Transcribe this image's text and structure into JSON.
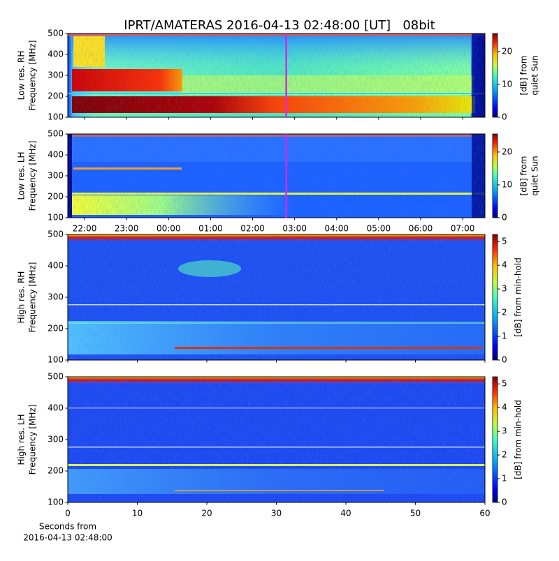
{
  "title": "IPRT/AMATERAS 2016-04-13 02:48:00 [UT]   08bit",
  "chart_data": [
    {
      "type": "heatmap",
      "ylabel": [
        "Low res. RH",
        "Frequency [MHz]"
      ],
      "xlim": [
        21.6,
        31.53
      ],
      "ylim": [
        100,
        500
      ],
      "yticks": [
        100,
        200,
        300,
        400,
        500
      ],
      "colorbar": {
        "label": [
          "[dB] from",
          "quiet Sun"
        ],
        "lim": [
          0,
          25.5
        ],
        "ticks": [
          0,
          10,
          20
        ]
      },
      "cursor": {
        "x": 26.8,
        "color": "#d42be0"
      }
    },
    {
      "type": "heatmap",
      "ylabel": [
        "Low res. LH",
        "Frequency [MHz]"
      ],
      "xlim": [
        21.6,
        31.53
      ],
      "ylim": [
        100,
        500
      ],
      "yticks": [
        100,
        200,
        300,
        400,
        500
      ],
      "xticks": [
        {
          "value": 22,
          "label": "22:00"
        },
        {
          "value": 23,
          "label": "23:00"
        },
        {
          "value": 24,
          "label": "00:00"
        },
        {
          "value": 25,
          "label": "01:00"
        },
        {
          "value": 26,
          "label": "02:00"
        },
        {
          "value": 27,
          "label": "03:00"
        },
        {
          "value": 28,
          "label": "04:00"
        },
        {
          "value": 29,
          "label": "05:00"
        },
        {
          "value": 30,
          "label": "06:00"
        },
        {
          "value": 31,
          "label": "07:00"
        }
      ],
      "colorbar": {
        "label": [
          "[dB] from",
          "quiet Sun"
        ],
        "lim": [
          0,
          25.5
        ],
        "ticks": [
          0,
          10,
          20
        ]
      },
      "cursor": {
        "x": 26.8,
        "color": "#d42be0"
      }
    },
    {
      "type": "heatmap",
      "ylabel": [
        "High res. RH",
        "Frequency [MHz]"
      ],
      "xlim": [
        0,
        60
      ],
      "ylim": [
        100,
        500
      ],
      "yticks": [
        100,
        200,
        300,
        400,
        500
      ],
      "colorbar": {
        "label": [
          "[dB] from min-hold"
        ],
        "lim": [
          0,
          5.3
        ],
        "ticks": [
          0,
          1,
          2,
          3,
          4,
          5
        ]
      }
    },
    {
      "type": "heatmap",
      "ylabel": [
        "High res. LH",
        "Frequency [MHz]"
      ],
      "xlim": [
        0,
        60
      ],
      "ylim": [
        100,
        500
      ],
      "yticks": [
        100,
        200,
        300,
        400,
        500
      ],
      "xticks": [
        0,
        10,
        20,
        30,
        40,
        50,
        60
      ],
      "xlabel": [
        "Seconds from",
        "2016-04-13 02:48:00"
      ],
      "colorbar": {
        "label": [
          "[dB] from min-hold"
        ],
        "lim": [
          0,
          5.3
        ],
        "ticks": [
          0,
          1,
          2,
          3,
          4,
          5
        ]
      }
    }
  ]
}
